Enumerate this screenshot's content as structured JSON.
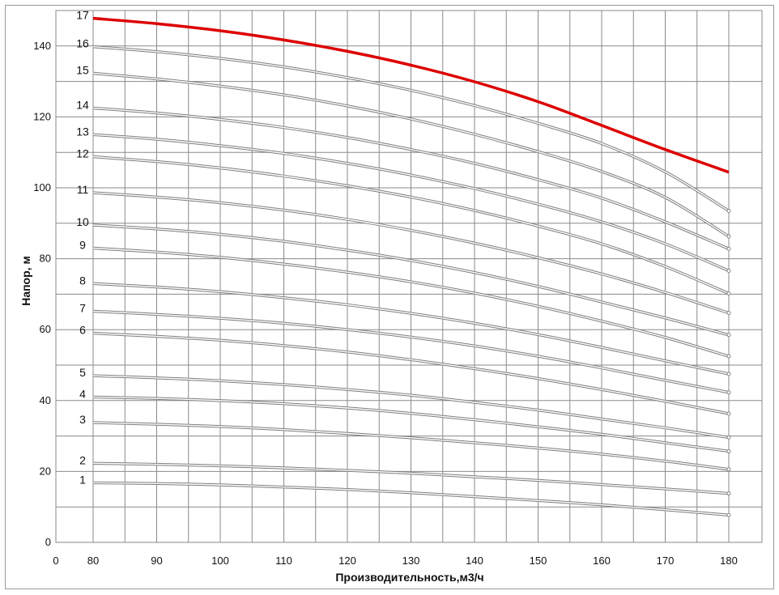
{
  "chart_data": {
    "type": "line",
    "xlabel": "Производительность,м3/ч",
    "ylabel": "Напор, м",
    "xlim": [
      0,
      184
    ],
    "ylim": [
      0,
      150
    ],
    "x_ticks": [
      "0",
      "80",
      "90",
      "100",
      "110",
      "120",
      "130",
      "140",
      "150",
      "160",
      "170",
      "180"
    ],
    "y_ticks": [
      "0",
      "20",
      "40",
      "60",
      "80",
      "100",
      "120",
      "140"
    ],
    "grid": true,
    "highlight_color": "#dd0000",
    "curve_color": "#a8a8a8",
    "x": [
      80,
      90,
      100,
      110,
      120,
      130,
      140,
      150,
      160,
      170,
      180
    ],
    "series": [
      {
        "name": "1",
        "values": [
          16.8,
          16.6,
          16.2,
          15.6,
          14.9,
          14.0,
          12.9,
          11.8,
          10.6,
          9.2,
          7.7
        ]
      },
      {
        "name": "2",
        "values": [
          22.3,
          22.0,
          21.6,
          21.0,
          20.3,
          19.5,
          18.5,
          17.5,
          16.3,
          15.1,
          13.8
        ]
      },
      {
        "name": "3",
        "values": [
          33.8,
          33.3,
          32.7,
          31.8,
          30.7,
          29.5,
          28.1,
          26.6,
          24.9,
          22.9,
          20.6
        ]
      },
      {
        "name": "4",
        "values": [
          41.0,
          40.6,
          40.0,
          39.1,
          37.9,
          36.4,
          34.6,
          32.6,
          30.5,
          28.1,
          25.7
        ]
      },
      {
        "name": "5",
        "values": [
          47.0,
          46.4,
          45.6,
          44.5,
          43.1,
          41.5,
          39.5,
          37.3,
          34.8,
          32.3,
          29.6
        ]
      },
      {
        "name": "6",
        "values": [
          59.0,
          58.1,
          57.0,
          55.5,
          53.7,
          51.5,
          49.0,
          46.2,
          43.1,
          39.8,
          36.3
        ]
      },
      {
        "name": "7",
        "values": [
          65.2,
          64.3,
          63.2,
          61.8,
          60.0,
          57.9,
          55.4,
          52.5,
          49.2,
          45.7,
          42.3
        ]
      },
      {
        "name": "8",
        "values": [
          73.0,
          72.0,
          70.7,
          69.0,
          67.0,
          64.6,
          61.8,
          58.6,
          55.0,
          51.2,
          47.5
        ]
      },
      {
        "name": "9",
        "values": [
          83.0,
          81.9,
          80.4,
          78.5,
          76.2,
          73.5,
          70.3,
          66.6,
          62.4,
          57.8,
          52.5
        ]
      },
      {
        "name": "10",
        "values": [
          89.5,
          88.4,
          86.9,
          84.9,
          82.4,
          79.5,
          76.1,
          72.2,
          67.8,
          63.3,
          58.5
        ]
      },
      {
        "name": "11",
        "values": [
          98.6,
          97.4,
          95.8,
          93.7,
          91.1,
          88.0,
          84.4,
          80.3,
          75.7,
          70.5,
          64.7
        ]
      },
      {
        "name": "12",
        "values": [
          108.8,
          107.4,
          105.6,
          103.3,
          100.6,
          97.4,
          93.6,
          89.2,
          84.2,
          77.8,
          70.2
        ]
      },
      {
        "name": "13",
        "values": [
          115.0,
          113.7,
          111.9,
          109.7,
          106.9,
          103.6,
          99.8,
          95.4,
          90.4,
          84.2,
          76.6
        ]
      },
      {
        "name": "14",
        "values": [
          122.5,
          121.1,
          119.3,
          117.0,
          114.2,
          110.8,
          106.9,
          102.3,
          97.1,
          90.4,
          82.8
        ]
      },
      {
        "name": "15",
        "values": [
          132.3,
          130.7,
          128.7,
          126.2,
          123.1,
          119.4,
          115.1,
          110.2,
          104.6,
          97.3,
          86.3
        ]
      },
      {
        "name": "16",
        "values": [
          139.8,
          138.4,
          136.5,
          134.1,
          131.1,
          127.5,
          123.2,
          118.2,
          112.5,
          104.5,
          93.5
        ]
      },
      {
        "name": "17",
        "values": [
          147.8,
          146.3,
          144.3,
          141.7,
          138.5,
          134.6,
          129.9,
          124.3,
          117.6,
          110.8,
          104.4
        ],
        "highlight": true
      }
    ]
  }
}
